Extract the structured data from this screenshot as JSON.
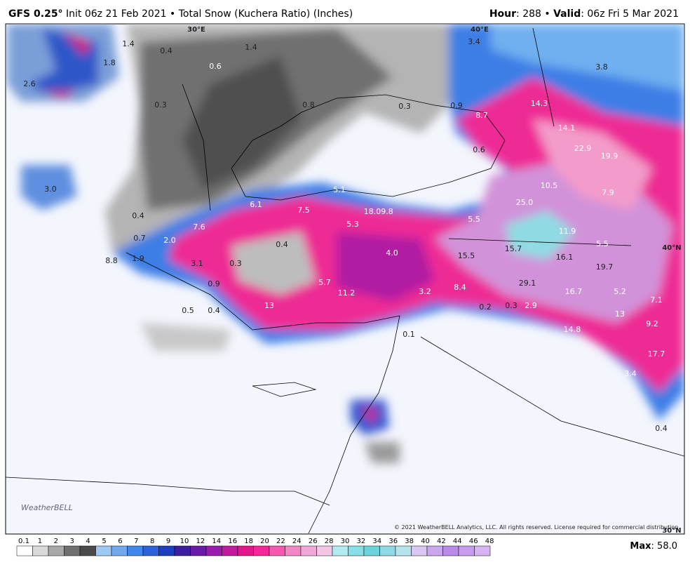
{
  "header": {
    "model": "GFS 0.25°",
    "info": "Init 06z 21 Feb 2021 • Total Snow (Kuchera Ratio) (Inches)",
    "hour_label": "Hour",
    "hour_text": ": 288 • ",
    "valid_label": "Valid",
    "valid_text": ": 06z Fri 5 Mar 2021"
  },
  "map": {
    "grid_labels": [
      "30°E",
      "40°E",
      "40°N",
      "30°N"
    ],
    "labels": [
      "1.4",
      "0.4",
      "1.4",
      "3.4",
      "3.8",
      "1.8",
      "0.6",
      "2.6",
      "0.3",
      "0.8",
      "0.3",
      "0.9",
      "8.7",
      "14.3",
      "14.1",
      "22.9",
      "19.9",
      "0.6",
      "3.0",
      "5.1",
      "10.5",
      "7.9",
      "6.1",
      "7.5",
      "18.0",
      "9.8",
      "25.0",
      "0.4",
      "7.6",
      "5.3",
      "5.5",
      "11.9",
      "0.7",
      "2.0",
      "0.4",
      "4.0",
      "15.5",
      "15.7",
      "5.5",
      "16.1",
      "8.8",
      "1.9",
      "3.1",
      "0.3",
      "19.7",
      "5.7",
      "29.1",
      "0.9",
      "11.2",
      "3.2",
      "8.4",
      "16.7",
      "5.2",
      "7.1",
      "0.5",
      "0.4",
      "13",
      "0.2",
      "0.3",
      "2.9",
      "13",
      "9.2",
      "14.8",
      "0.1",
      "17.7",
      "3.4",
      "0.4"
    ],
    "logo": "WeatherBELL",
    "copyright": "© 2021 WeatherBELL Analytics, LLC. All rights reserved. License required for commercial distribution."
  },
  "colorbar": {
    "ticks": [
      0.1,
      1,
      2,
      3,
      4,
      5,
      6,
      7,
      8,
      9,
      10,
      12,
      14,
      16,
      18,
      20,
      22,
      24,
      26,
      28,
      30,
      32,
      34,
      36,
      38,
      40,
      42,
      44,
      46,
      48
    ],
    "colors": [
      "#ffffff",
      "#d9d9d9",
      "#a8a8a8",
      "#6f6f6f",
      "#4a4a4a",
      "#9ec9f2",
      "#6fa8ee",
      "#3f87e8",
      "#2b63d9",
      "#1b3fbf",
      "#3b1fa0",
      "#6a1aa8",
      "#9a1cae",
      "#c21a9f",
      "#e3178a",
      "#f7259a",
      "#f558ae",
      "#f386c4",
      "#f2a8d6",
      "#f2c6e4",
      "#b3eaf0",
      "#86dfe6",
      "#6ad3dc",
      "#8fd9e4",
      "#b4e4ee",
      "#d9c6f2",
      "#c9a6ee",
      "#b98ae8",
      "#c79cee",
      "#d6b4f2"
    ]
  },
  "footer": {
    "max_label": "Max",
    "max_text": ": 58.0"
  }
}
